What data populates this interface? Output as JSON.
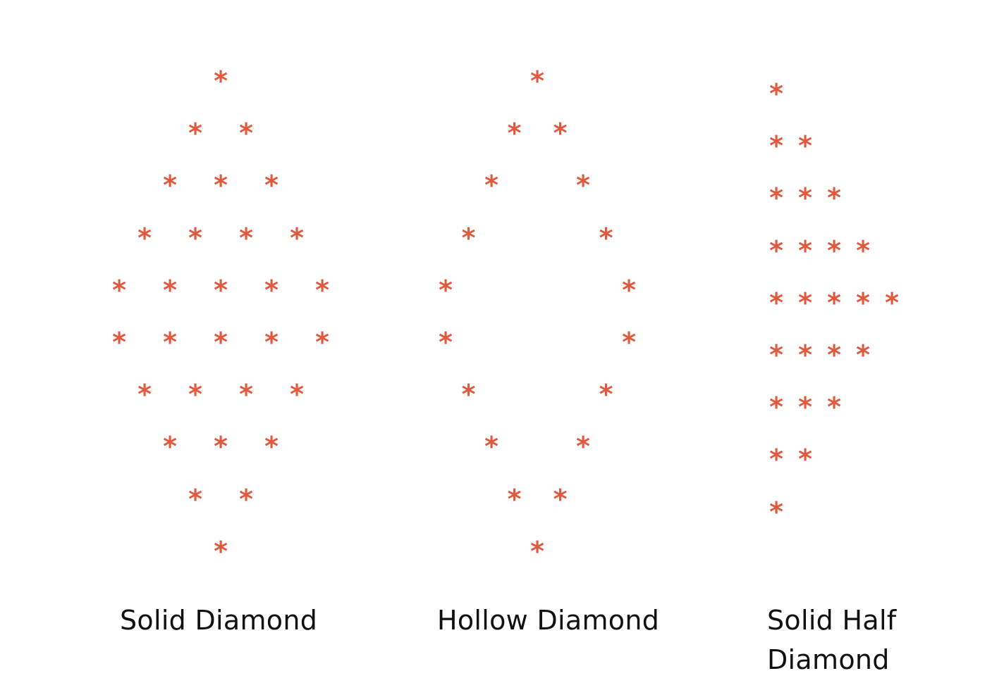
{
  "glyph": "*",
  "star_color": "#e05a3f",
  "patterns": [
    {
      "caption": "Solid Diamond",
      "rows": [
        [
          2
        ],
        [
          1.5,
          2.5
        ],
        [
          1,
          2,
          3
        ],
        [
          0.5,
          1.5,
          2.5,
          3.5
        ],
        [
          0,
          1,
          2,
          3,
          4
        ],
        [
          0,
          1,
          2,
          3,
          4
        ],
        [
          0.5,
          1.5,
          2.5,
          3.5
        ],
        [
          1,
          2,
          3
        ],
        [
          1.5,
          2.5
        ],
        [
          2
        ]
      ]
    },
    {
      "caption": "Hollow Diamond",
      "rows": [
        [
          2
        ],
        [
          1.5,
          2.5
        ],
        [
          1,
          3
        ],
        [
          0.5,
          3.5
        ],
        [
          0,
          4
        ],
        [
          0,
          4
        ],
        [
          0.5,
          3.5
        ],
        [
          1,
          3
        ],
        [
          1.5,
          2.5
        ],
        [
          2
        ]
      ]
    },
    {
      "caption": "Solid Half Diamond",
      "rows": [
        [
          0
        ],
        [
          0,
          1
        ],
        [
          0,
          1,
          2
        ],
        [
          0,
          1,
          2,
          3
        ],
        [
          0,
          1,
          2,
          3,
          4
        ],
        [
          0,
          1,
          2,
          3
        ],
        [
          0,
          1,
          2
        ],
        [
          0,
          1
        ],
        [
          0
        ]
      ]
    }
  ]
}
